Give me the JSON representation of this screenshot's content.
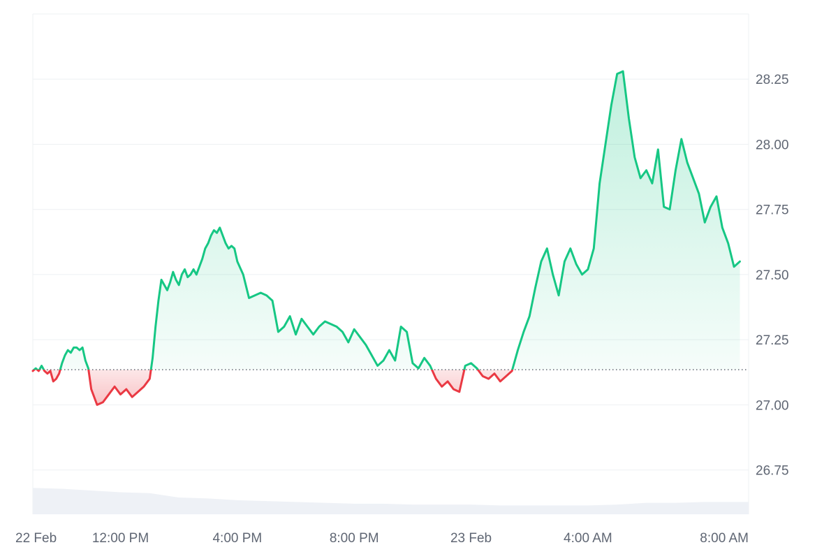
{
  "chart_data": {
    "type": "area",
    "baseline": 27.135,
    "colors": {
      "up_line": "#16c784",
      "down_line": "#ea3943",
      "up_fill": "#16c784",
      "down_fill": "#ea3943",
      "volume_fill": "#eef1f6",
      "grid": "#eef0f3",
      "baseline_dots": "#555b66"
    },
    "y_axis": {
      "range": [
        26.58,
        28.5
      ],
      "ticks": [
        "26.75",
        "27.00",
        "27.25",
        "27.50",
        "27.75",
        "28.00",
        "28.25"
      ],
      "position": "right"
    },
    "x_axis": {
      "range": [
        0,
        24.5
      ],
      "tick_labels": [
        "22 Feb",
        "12:00 PM",
        "4:00 PM",
        "8:00 PM",
        "23 Feb",
        "4:00 AM",
        "8:00 AM"
      ],
      "tick_hours": [
        0,
        3,
        7,
        11,
        15,
        19,
        23
      ]
    },
    "grid": true,
    "series": [
      {
        "x": [
          0,
          0.1,
          0.2,
          0.3,
          0.4,
          0.5,
          0.6,
          0.7,
          0.8,
          0.9,
          1.0,
          1.1,
          1.2,
          1.3,
          1.4,
          1.5,
          1.6,
          1.7,
          1.8,
          1.9,
          2.0,
          2.2,
          2.4,
          2.6,
          2.8,
          3.0,
          3.2,
          3.4,
          3.6,
          3.8,
          4.0,
          4.1,
          4.2,
          4.3,
          4.4,
          4.5,
          4.6,
          4.7,
          4.8,
          4.9,
          5.0,
          5.1,
          5.2,
          5.3,
          5.4,
          5.5,
          5.6,
          5.7,
          5.8,
          5.9,
          6.0,
          6.1,
          6.2,
          6.3,
          6.4,
          6.5,
          6.6,
          6.7,
          6.8,
          6.9,
          7.0,
          7.2,
          7.4,
          7.6,
          7.8,
          8.0,
          8.2,
          8.4,
          8.6,
          8.8,
          9.0,
          9.2,
          9.4,
          9.6,
          9.8,
          10.0,
          10.2,
          10.4,
          10.6,
          10.8,
          11.0,
          11.2,
          11.4,
          11.6,
          11.8,
          12.0,
          12.2,
          12.4,
          12.6,
          12.8,
          13.0,
          13.2,
          13.4,
          13.6,
          13.8,
          14.0,
          14.2,
          14.4,
          14.6,
          14.8,
          15.0,
          15.2,
          15.4,
          15.6,
          15.8,
          16.0,
          16.2,
          16.4,
          16.6,
          16.8,
          17.0,
          17.2,
          17.4,
          17.6,
          17.8,
          18.0,
          18.2,
          18.4,
          18.6,
          18.8,
          19.0,
          19.2,
          19.4,
          19.6,
          19.8,
          20.0,
          20.2,
          20.4,
          20.6,
          20.8,
          21.0,
          21.2,
          21.4,
          21.6,
          21.8,
          22.0,
          22.2,
          22.4,
          22.6,
          22.8,
          23.0,
          23.2,
          23.4,
          23.6,
          23.8,
          24.0,
          24.2
        ],
        "values": [
          27.13,
          27.14,
          27.13,
          27.15,
          27.13,
          27.12,
          27.13,
          27.09,
          27.1,
          27.12,
          27.16,
          27.19,
          27.21,
          27.2,
          27.22,
          27.22,
          27.21,
          27.22,
          27.17,
          27.14,
          27.06,
          27.0,
          27.01,
          27.04,
          27.07,
          27.04,
          27.06,
          27.03,
          27.05,
          27.07,
          27.1,
          27.18,
          27.3,
          27.4,
          27.48,
          27.46,
          27.44,
          27.47,
          27.51,
          27.48,
          27.46,
          27.5,
          27.52,
          27.49,
          27.5,
          27.52,
          27.5,
          27.53,
          27.56,
          27.6,
          27.62,
          27.65,
          27.67,
          27.66,
          27.68,
          27.65,
          27.62,
          27.6,
          27.61,
          27.6,
          27.55,
          27.5,
          27.41,
          27.42,
          27.43,
          27.42,
          27.4,
          27.28,
          27.3,
          27.34,
          27.27,
          27.33,
          27.3,
          27.27,
          27.3,
          27.32,
          27.31,
          27.3,
          27.28,
          27.24,
          27.29,
          27.26,
          27.23,
          27.19,
          27.15,
          27.17,
          27.21,
          27.17,
          27.3,
          27.28,
          27.16,
          27.14,
          27.18,
          27.15,
          27.1,
          27.07,
          27.09,
          27.06,
          27.05,
          27.15,
          27.16,
          27.14,
          27.11,
          27.1,
          27.12,
          27.09,
          27.11,
          27.13,
          27.21,
          27.28,
          27.34,
          27.45,
          27.55,
          27.6,
          27.5,
          27.42,
          27.55,
          27.6,
          27.54,
          27.5,
          27.52,
          27.6,
          27.85,
          28.0,
          28.15,
          28.27,
          28.28,
          28.1,
          27.95,
          27.87,
          27.9,
          27.85,
          27.98,
          27.76,
          27.75,
          27.9,
          28.02,
          27.93,
          27.87,
          27.81,
          27.7,
          27.76,
          27.8,
          27.68,
          27.62,
          27.53,
          27.55
        ]
      }
    ],
    "volume": {
      "x": [
        0,
        1,
        2,
        3,
        4,
        5,
        6,
        7,
        8,
        9,
        10,
        11,
        12,
        13,
        14,
        15,
        16,
        17,
        18,
        19,
        20,
        21,
        22,
        23,
        24,
        24.5
      ],
      "values": [
        0.3,
        0.29,
        0.27,
        0.25,
        0.24,
        0.19,
        0.18,
        0.16,
        0.15,
        0.14,
        0.13,
        0.12,
        0.12,
        0.11,
        0.11,
        0.11,
        0.1,
        0.1,
        0.1,
        0.1,
        0.11,
        0.13,
        0.13,
        0.14,
        0.14,
        0.14
      ]
    }
  }
}
